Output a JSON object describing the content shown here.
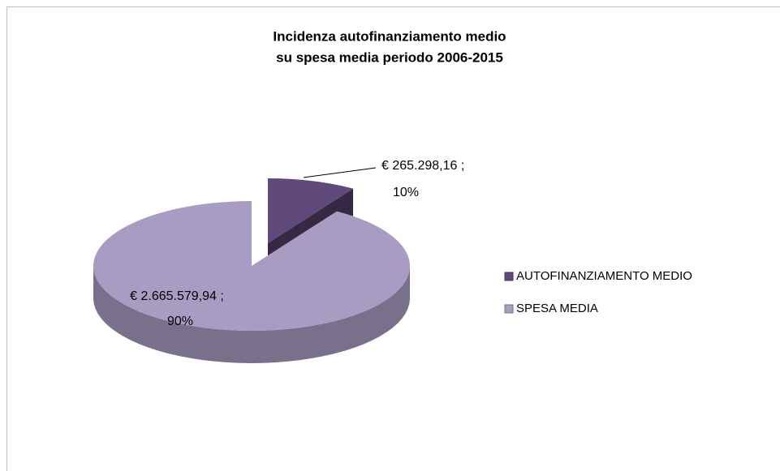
{
  "chart_data": {
    "type": "pie",
    "title": [
      "Incidenza autofinanziamento medio",
      "su spesa media periodo 2006-2015"
    ],
    "categories": [
      "AUTOFINANZIAMENTO MEDIO",
      "SPESA MEDIA"
    ],
    "values": [
      265298.16,
      2665579.94
    ],
    "value_labels": [
      "€ 265.298,16 ;",
      "€ 2.665.579,94 ;"
    ],
    "percents": [
      10,
      90
    ],
    "percent_labels": [
      "10%",
      "90%"
    ],
    "colors": [
      "#604a7b",
      "#a89cc2"
    ],
    "legend": "right"
  }
}
